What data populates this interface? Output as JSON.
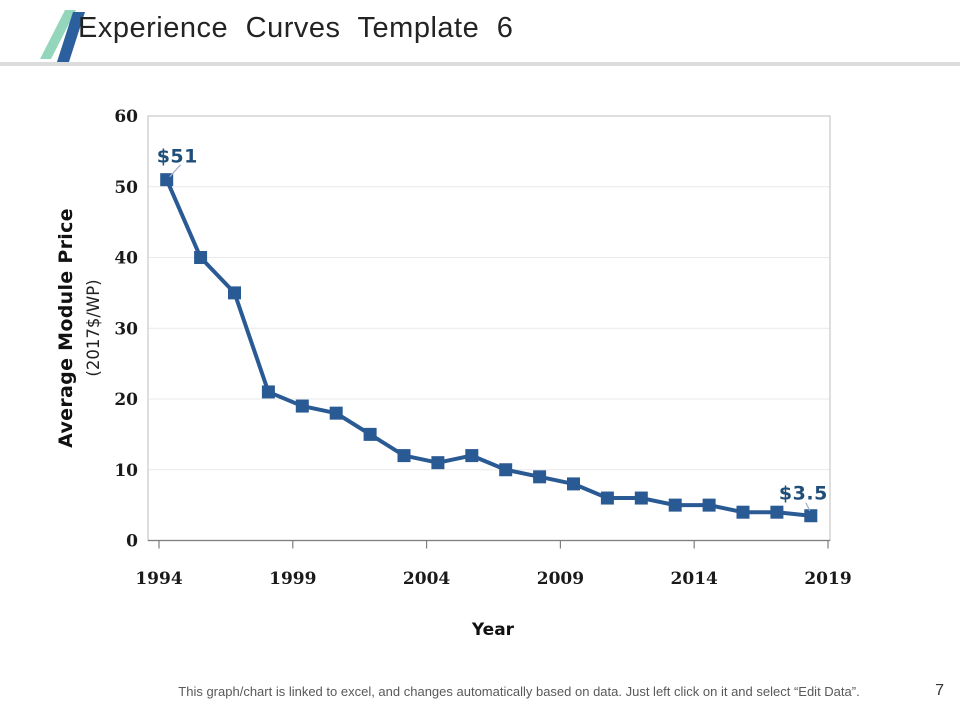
{
  "header": {
    "title": "Experience Curves Template 6"
  },
  "logo": {
    "colors": {
      "green": "#93d6bc",
      "blue": "#2c5f9e"
    }
  },
  "chart_data": {
    "type": "line",
    "title": "",
    "xlabel": "Year",
    "ylabel": "Average Module Price",
    "ylabel_sub": "(2017$/WP)",
    "x_tick_labels": [
      "1994",
      "1999",
      "2004",
      "2009",
      "2014",
      "2019"
    ],
    "y_ticks": [
      0,
      10,
      20,
      30,
      40,
      50,
      60
    ],
    "ylim": [
      0,
      60
    ],
    "values": [
      51,
      40,
      35,
      21,
      19,
      18,
      15,
      12,
      11,
      12,
      10,
      9,
      8,
      6,
      6,
      5,
      5,
      4,
      4,
      3.5
    ],
    "first_point_label": "$51",
    "last_point_label": "$3.5",
    "marker": "square",
    "grid": true,
    "legend": false,
    "series_color": "#2a5a94",
    "label_color": "#1f4e79",
    "gridline_color": "#e9e9e9",
    "plot_border_color": "#c8c8c8",
    "axis_color": "#7f7f7f",
    "leader_color": "#a3b3c9"
  },
  "footer": {
    "note": "This graph/chart is linked to excel, and changes automatically based on data. Just left click on it and select “Edit Data”.",
    "page_number": "7"
  }
}
